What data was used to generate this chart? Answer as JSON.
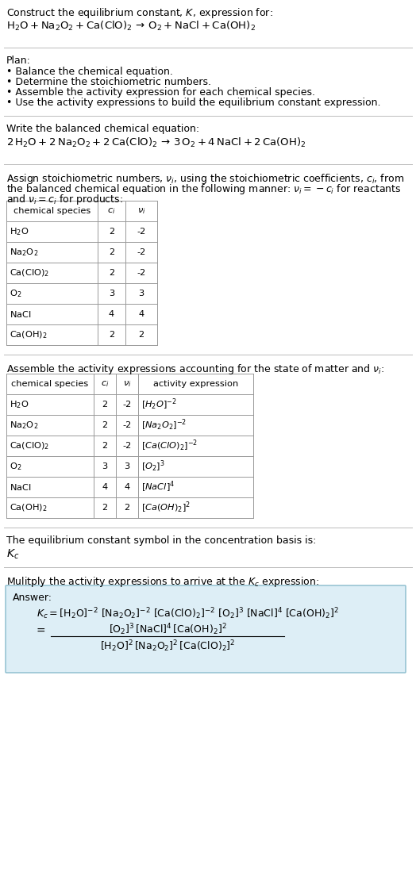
{
  "bg_color": "#ffffff",
  "answer_box_color": "#ddeef6",
  "table_border_color": "#999999",
  "text_color": "#000000",
  "sep_color": "#bbbbbb",
  "font_size": 9.0,
  "font_size_small": 8.2,
  "species_mathtext": [
    "$\\mathdefault{H_2O}$",
    "$\\mathdefault{Na_2O_2}$",
    "$\\mathdefault{Ca(ClO)_2}$",
    "$\\mathdefault{O_2}$",
    "$\\mathdefault{NaCl}$",
    "$\\mathdefault{Ca(OH)_2}$"
  ],
  "table1_ci": [
    "2",
    "2",
    "2",
    "3",
    "4",
    "2"
  ],
  "table1_nu": [
    "-2",
    "-2",
    "-2",
    "3",
    "4",
    "2"
  ],
  "act_exprs": [
    "$[H_2O]^{-2}$",
    "$[Na_2O_2]^{-2}$",
    "$[Ca(ClO)_2]^{-2}$",
    "$[O_2]^3$",
    "$[NaCl]^4$",
    "$[Ca(OH)_2]^2$"
  ]
}
